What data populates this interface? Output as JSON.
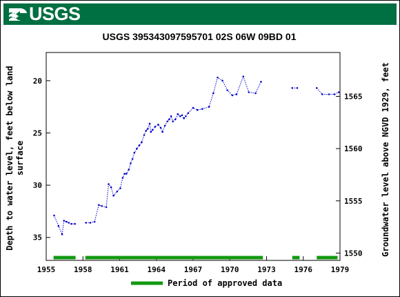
{
  "banner": {
    "logo_text": "USGS",
    "logo_icon": "usgs-wave-icon",
    "color": "#006f41"
  },
  "chart_data": {
    "type": "line",
    "title": "USGS 395343097595701 02S 06W 09BD  01",
    "xlabel": "",
    "ylabel": "Depth to water level, feet below land surface",
    "ylabel_lines": [
      "Depth to water level, feet below land",
      "surface"
    ],
    "y2label": "Groundwater level above NGVD 1929, feet",
    "xlim": [
      1955,
      1979
    ],
    "ylim": [
      37.2,
      17.3
    ],
    "y_inverted": true,
    "y2lim": [
      1549.3,
      1569.2
    ],
    "x_ticks": [
      1955,
      1958,
      1961,
      1964,
      1967,
      1970,
      1973,
      1976,
      1979
    ],
    "y_ticks": [
      20,
      25,
      30,
      35
    ],
    "y2_ticks": [
      1550,
      1555,
      1560,
      1565
    ],
    "grid": false,
    "line_color": "#0000cc",
    "legend": {
      "label": "Period of approved data",
      "color": "#119911",
      "placement": "bottom-center"
    },
    "approved_periods": [
      [
        1955.6,
        1957.4
      ],
      [
        1958.2,
        1972.7
      ],
      [
        1975.1,
        1975.7
      ],
      [
        1977.1,
        1978.8
      ]
    ],
    "series": [
      {
        "segments": [
          [
            [
              1955.65,
              32.9
            ],
            [
              1956.0,
              33.9
            ],
            [
              1956.3,
              34.7
            ],
            [
              1956.45,
              33.4
            ],
            [
              1956.65,
              33.5
            ],
            [
              1956.85,
              33.6
            ],
            [
              1957.05,
              33.7
            ],
            [
              1957.35,
              33.7
            ]
          ],
          [
            [
              1958.25,
              33.6
            ],
            [
              1958.6,
              33.6
            ],
            [
              1958.95,
              33.5
            ],
            [
              1959.3,
              31.9
            ],
            [
              1959.55,
              32.0
            ],
            [
              1959.9,
              32.1
            ],
            [
              1960.1,
              29.9
            ],
            [
              1960.3,
              30.2
            ],
            [
              1960.5,
              31.0
            ],
            [
              1960.8,
              30.6
            ],
            [
              1961.05,
              30.3
            ],
            [
              1961.25,
              29.3
            ],
            [
              1961.4,
              28.9
            ],
            [
              1961.55,
              28.9
            ],
            [
              1961.75,
              28.5
            ],
            [
              1961.9,
              27.9
            ],
            [
              1962.05,
              27.5
            ],
            [
              1962.2,
              26.9
            ],
            [
              1962.4,
              26.5
            ],
            [
              1962.6,
              26.2
            ],
            [
              1962.8,
              25.9
            ],
            [
              1963.0,
              25.2
            ],
            [
              1963.15,
              24.8
            ],
            [
              1963.3,
              24.6
            ],
            [
              1963.45,
              24.1
            ],
            [
              1963.55,
              24.9
            ],
            [
              1963.7,
              24.7
            ],
            [
              1963.9,
              24.4
            ],
            [
              1964.15,
              24.2
            ],
            [
              1964.35,
              24.5
            ],
            [
              1964.5,
              24.9
            ],
            [
              1964.7,
              24.3
            ],
            [
              1964.9,
              23.9
            ],
            [
              1965.05,
              23.7
            ],
            [
              1965.2,
              23.4
            ],
            [
              1965.35,
              23.9
            ],
            [
              1965.55,
              23.7
            ],
            [
              1965.75,
              23.2
            ],
            [
              1965.95,
              23.4
            ],
            [
              1966.1,
              23.3
            ],
            [
              1966.25,
              23.6
            ],
            [
              1966.4,
              23.4
            ],
            [
              1966.6,
              23.1
            ],
            [
              1967.0,
              22.6
            ],
            [
              1967.35,
              22.8
            ],
            [
              1967.75,
              22.7
            ],
            [
              1968.3,
              22.5
            ],
            [
              1968.65,
              21.2
            ],
            [
              1969.0,
              19.7
            ],
            [
              1969.4,
              20.0
            ],
            [
              1969.8,
              20.9
            ],
            [
              1970.2,
              21.4
            ],
            [
              1970.55,
              21.3
            ],
            [
              1971.1,
              19.6
            ],
            [
              1971.55,
              21.1
            ],
            [
              1972.1,
              21.2
            ],
            [
              1972.55,
              20.1
            ]
          ],
          [
            [
              1975.1,
              20.7
            ],
            [
              1975.5,
              20.7
            ]
          ],
          [
            [
              1977.1,
              20.7
            ],
            [
              1977.55,
              21.3
            ],
            [
              1978.1,
              21.3
            ],
            [
              1978.55,
              21.3
            ],
            [
              1978.9,
              21.1
            ]
          ]
        ]
      }
    ]
  }
}
